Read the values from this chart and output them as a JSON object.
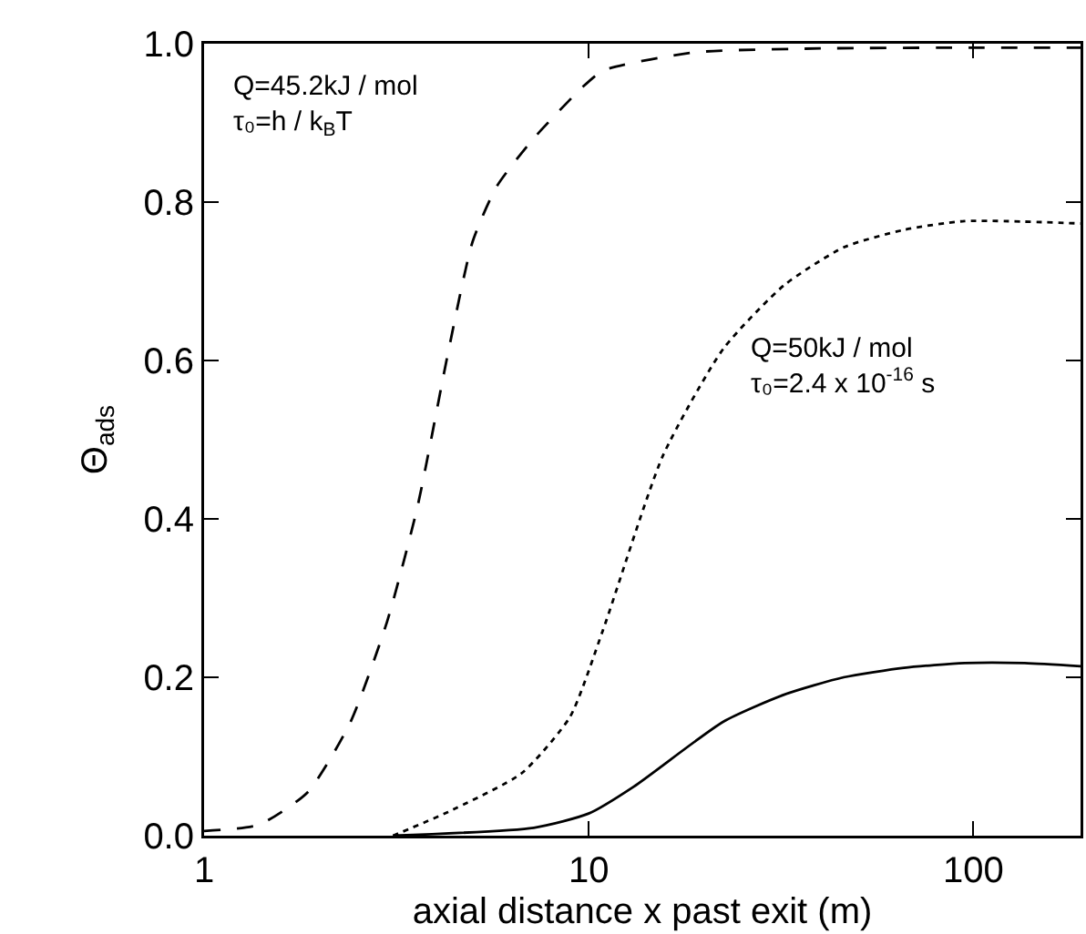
{
  "chart_data": {
    "type": "line",
    "xlabel": "axial distance x past exit (m)",
    "ylabel": "Θ$_{ads}$",
    "log": "x",
    "xlim": [
      1,
      190
    ],
    "xticks": [
      1,
      10,
      100
    ],
    "ylim": [
      0,
      1
    ],
    "yticks": [
      {
        "value": 0,
        "label": "0.0"
      },
      0.2,
      0.4,
      0.6,
      0.8,
      {
        "value": 1,
        "label": "1.0"
      }
    ],
    "grid": false,
    "marker": "none",
    "annotations": [
      "Q=45.2kJ / mol\nτ₀=h / k$_{B}$T",
      "Q=50kJ / mol\nτ₀=2.4 x 10$^{-16}$ s"
    ],
    "series": [
      {
        "color": "#000000",
        "line_style": "dashed",
        "x": [
          1,
          1.39,
          1.86,
          2.4,
          2.99,
          3.59,
          4.31,
          4.99,
          5.77,
          7.18,
          9.63,
          10.9,
          18.8,
          40,
          100,
          190
        ],
        "values": [
          0.006,
          0.014,
          0.055,
          0.143,
          0.27,
          0.416,
          0.61,
          0.75,
          0.82,
          0.88,
          0.945,
          0.966,
          0.989,
          0.994,
          0.995,
          0.995
        ]
      },
      {
        "color": "#000000",
        "line_style": "dotted",
        "x": [
          3.1,
          4.31,
          6.7,
          8.94,
          10.9,
          15.6,
          22.4,
          32.2,
          46.1,
          66.1,
          94.8,
          190
        ],
        "values": [
          0,
          0.03,
          0.079,
          0.15,
          0.26,
          0.48,
          0.615,
          0.695,
          0.743,
          0.765,
          0.776,
          0.773
        ]
      },
      {
        "color": "#000000",
        "line_style": "solid",
        "x": [
          3.1,
          7.2,
          10,
          13.1,
          22.4,
          32.2,
          46,
          66,
          94.8,
          136,
          190
        ],
        "values": [
          0,
          0.01,
          0.028,
          0.062,
          0.144,
          0.178,
          0.2,
          0.212,
          0.218,
          0.218,
          0.214
        ]
      }
    ]
  }
}
